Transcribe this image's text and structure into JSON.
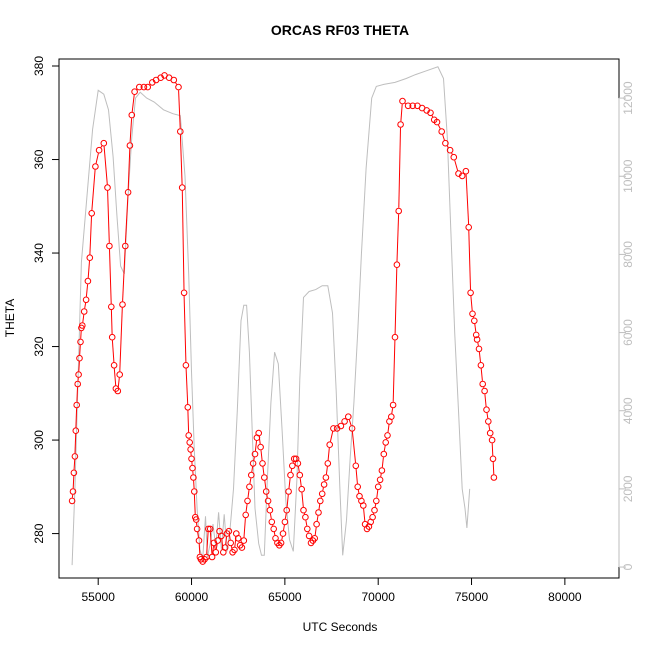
{
  "chart_data": {
    "type": "line",
    "title": "ORCAS RF03 THETA",
    "xlabel": "UTC Seconds",
    "ylabel": "THETA",
    "xlim": [
      52900,
      82900
    ],
    "ylim": [
      270.5,
      381.5
    ],
    "y2lim": [
      -280,
      13000
    ],
    "grid": false,
    "legend": "none",
    "x_ticks": [
      55000,
      60000,
      65000,
      70000,
      75000,
      80000
    ],
    "y_ticks": [
      280,
      300,
      320,
      340,
      360,
      380
    ],
    "y2_ticks": [
      0,
      2000,
      4000,
      6000,
      8000,
      10000,
      12000
    ],
    "colors": {
      "theta": "#ff0000",
      "secondary": "#bebebe"
    },
    "series": [
      {
        "axis": "left",
        "style": "line-with-circles",
        "color": "#ff0000",
        "points": [
          [
            53600,
            287
          ],
          [
            53650,
            289
          ],
          [
            53700,
            293
          ],
          [
            53750,
            296.5
          ],
          [
            53800,
            302
          ],
          [
            53850,
            307.5
          ],
          [
            53900,
            312
          ],
          [
            53950,
            314
          ],
          [
            54000,
            317.5
          ],
          [
            54050,
            321
          ],
          [
            54100,
            324
          ],
          [
            54150,
            324.5
          ],
          [
            54250,
            327.5
          ],
          [
            54350,
            330
          ],
          [
            54450,
            334
          ],
          [
            54550,
            339
          ],
          [
            54650,
            348.5
          ],
          [
            54850,
            358.5
          ],
          [
            55050,
            362
          ],
          [
            55300,
            363.5
          ],
          [
            55500,
            354
          ],
          [
            55600,
            341.5
          ],
          [
            55700,
            328.5
          ],
          [
            55750,
            322
          ],
          [
            55850,
            316
          ],
          [
            55950,
            311
          ],
          [
            56050,
            310.5
          ],
          [
            56150,
            314
          ],
          [
            56300,
            329
          ],
          [
            56450,
            341.5
          ],
          [
            56600,
            353
          ],
          [
            56700,
            363
          ],
          [
            56800,
            369.5
          ],
          [
            56950,
            374.5
          ],
          [
            57200,
            375.5
          ],
          [
            57450,
            375.5
          ],
          [
            57650,
            375.5
          ],
          [
            57900,
            376.5
          ],
          [
            58100,
            377
          ],
          [
            58350,
            377.5
          ],
          [
            58550,
            378
          ],
          [
            58800,
            377.5
          ],
          [
            59050,
            377
          ],
          [
            59300,
            375.5
          ],
          [
            59400,
            366
          ],
          [
            59500,
            354
          ],
          [
            59600,
            331.5
          ],
          [
            59700,
            316
          ],
          [
            59800,
            307
          ],
          [
            59850,
            301
          ],
          [
            59900,
            299.5
          ],
          [
            59950,
            298
          ],
          [
            60000,
            296
          ],
          [
            60050,
            294
          ],
          [
            60100,
            292
          ],
          [
            60150,
            289
          ],
          [
            60200,
            283.5
          ],
          [
            60250,
            283
          ],
          [
            60300,
            281
          ],
          [
            60400,
            278.5
          ],
          [
            60450,
            275
          ],
          [
            60500,
            274.5
          ],
          [
            60600,
            274
          ],
          [
            60700,
            274.5
          ],
          [
            60800,
            275
          ],
          [
            60900,
            281
          ],
          [
            61000,
            281
          ],
          [
            61100,
            275
          ],
          [
            61200,
            278
          ],
          [
            61300,
            276
          ],
          [
            61400,
            278.5
          ],
          [
            61500,
            280.5
          ],
          [
            61600,
            279.5
          ],
          [
            61700,
            276
          ],
          [
            61800,
            277
          ],
          [
            61900,
            280
          ],
          [
            62000,
            280.5
          ],
          [
            62100,
            278
          ],
          [
            62200,
            276
          ],
          [
            62300,
            276.5
          ],
          [
            62400,
            280
          ],
          [
            62500,
            279
          ],
          [
            62600,
            277.5
          ],
          [
            62700,
            277
          ],
          [
            62800,
            278.5
          ],
          [
            62900,
            284
          ],
          [
            63000,
            287
          ],
          [
            63100,
            290
          ],
          [
            63200,
            292.5
          ],
          [
            63300,
            295
          ],
          [
            63400,
            297
          ],
          [
            63500,
            300.5
          ],
          [
            63600,
            301.5
          ],
          [
            63700,
            298.5
          ],
          [
            63800,
            295
          ],
          [
            63900,
            292
          ],
          [
            64000,
            289
          ],
          [
            64100,
            287
          ],
          [
            64200,
            285
          ],
          [
            64300,
            282.5
          ],
          [
            64400,
            281
          ],
          [
            64500,
            279
          ],
          [
            64600,
            278
          ],
          [
            64700,
            277.5
          ],
          [
            64800,
            278
          ],
          [
            64900,
            280
          ],
          [
            65000,
            282.5
          ],
          [
            65100,
            285
          ],
          [
            65200,
            289
          ],
          [
            65300,
            292.5
          ],
          [
            65400,
            294.5
          ],
          [
            65500,
            296
          ],
          [
            65600,
            296
          ],
          [
            65700,
            295
          ],
          [
            65800,
            292.5
          ],
          [
            65900,
            289.5
          ],
          [
            66000,
            285
          ],
          [
            66100,
            283.5
          ],
          [
            66200,
            281
          ],
          [
            66300,
            279.5
          ],
          [
            66400,
            278
          ],
          [
            66500,
            278.5
          ],
          [
            66600,
            279
          ],
          [
            66700,
            282
          ],
          [
            66800,
            284.5
          ],
          [
            66900,
            287
          ],
          [
            67000,
            288.5
          ],
          [
            67100,
            290.5
          ],
          [
            67200,
            292
          ],
          [
            67300,
            295
          ],
          [
            67400,
            299
          ],
          [
            67600,
            302.5
          ],
          [
            67800,
            302.5
          ],
          [
            68000,
            303
          ],
          [
            68200,
            304
          ],
          [
            68400,
            305
          ],
          [
            68600,
            302.5
          ],
          [
            68800,
            294.5
          ],
          [
            68900,
            290
          ],
          [
            69000,
            288
          ],
          [
            69100,
            287
          ],
          [
            69200,
            286
          ],
          [
            69300,
            282
          ],
          [
            69400,
            281
          ],
          [
            69500,
            281.5
          ],
          [
            69600,
            282.5
          ],
          [
            69700,
            283.5
          ],
          [
            69800,
            285
          ],
          [
            69900,
            287
          ],
          [
            70000,
            290
          ],
          [
            70100,
            291.5
          ],
          [
            70200,
            293.5
          ],
          [
            70300,
            297
          ],
          [
            70400,
            299.5
          ],
          [
            70500,
            301
          ],
          [
            70600,
            304
          ],
          [
            70700,
            305
          ],
          [
            70800,
            307.5
          ],
          [
            70900,
            322
          ],
          [
            71000,
            337.5
          ],
          [
            71100,
            349
          ],
          [
            71200,
            367.5
          ],
          [
            71300,
            372.5
          ],
          [
            71600,
            371.5
          ],
          [
            71850,
            371.5
          ],
          [
            72100,
            371.5
          ],
          [
            72350,
            371
          ],
          [
            72600,
            370.5
          ],
          [
            72800,
            370
          ],
          [
            73000,
            368.5
          ],
          [
            73150,
            368
          ],
          [
            73400,
            366
          ],
          [
            73600,
            363.5
          ],
          [
            73850,
            362
          ],
          [
            74050,
            360.5
          ],
          [
            74300,
            357
          ],
          [
            74500,
            356.5
          ],
          [
            74700,
            357.5
          ],
          [
            74850,
            345.5
          ],
          [
            74950,
            331.5
          ],
          [
            75050,
            327
          ],
          [
            75150,
            325.5
          ],
          [
            75250,
            322.5
          ],
          [
            75300,
            321.5
          ],
          [
            75400,
            319.5
          ],
          [
            75500,
            316
          ],
          [
            75600,
            312
          ],
          [
            75700,
            310.5
          ],
          [
            75800,
            306.5
          ],
          [
            75900,
            304
          ],
          [
            76000,
            301.5
          ],
          [
            76100,
            300
          ],
          [
            76150,
            296
          ],
          [
            76200,
            292
          ]
        ]
      },
      {
        "axis": "right",
        "style": "line",
        "color": "#bebebe",
        "points": [
          [
            53600,
            50
          ],
          [
            53750,
            2000
          ],
          [
            53900,
            4500
          ],
          [
            54100,
            7800
          ],
          [
            54400,
            9500
          ],
          [
            54700,
            11200
          ],
          [
            55000,
            12200
          ],
          [
            55300,
            12100
          ],
          [
            55550,
            11700
          ],
          [
            55800,
            10500
          ],
          [
            56000,
            9000
          ],
          [
            56200,
            7700
          ],
          [
            56400,
            7500
          ],
          [
            56600,
            9500
          ],
          [
            56800,
            11000
          ],
          [
            57000,
            12000
          ],
          [
            57250,
            12150
          ],
          [
            57600,
            12000
          ],
          [
            58000,
            11900
          ],
          [
            58500,
            11700
          ],
          [
            59000,
            11600
          ],
          [
            59400,
            11550
          ],
          [
            59650,
            10000
          ],
          [
            59850,
            7500
          ],
          [
            60000,
            5000
          ],
          [
            60150,
            3000
          ],
          [
            60300,
            1500
          ],
          [
            60450,
            450
          ],
          [
            60600,
            200
          ],
          [
            60750,
            1300
          ],
          [
            60850,
            250
          ],
          [
            61000,
            600
          ],
          [
            61150,
            1100
          ],
          [
            61300,
            500
          ],
          [
            61450,
            1400
          ],
          [
            61600,
            450
          ],
          [
            61750,
            1350
          ],
          [
            61900,
            400
          ],
          [
            62050,
            900
          ],
          [
            62250,
            2000
          ],
          [
            62450,
            4000
          ],
          [
            62650,
            6300
          ],
          [
            62800,
            6700
          ],
          [
            62950,
            6700
          ],
          [
            63100,
            5500
          ],
          [
            63250,
            3500
          ],
          [
            63400,
            1500
          ],
          [
            63600,
            600
          ],
          [
            63750,
            300
          ],
          [
            63900,
            300
          ],
          [
            64050,
            2100
          ],
          [
            64250,
            4200
          ],
          [
            64450,
            5500
          ],
          [
            64650,
            5200
          ],
          [
            64850,
            3500
          ],
          [
            65050,
            1700
          ],
          [
            65250,
            700
          ],
          [
            65450,
            400
          ],
          [
            65650,
            2300
          ],
          [
            65800,
            4800
          ],
          [
            66000,
            6900
          ],
          [
            66300,
            7050
          ],
          [
            66650,
            7100
          ],
          [
            67000,
            7200
          ],
          [
            67300,
            7200
          ],
          [
            67550,
            6500
          ],
          [
            67750,
            4500
          ],
          [
            67950,
            2000
          ],
          [
            68100,
            300
          ],
          [
            68300,
            1200
          ],
          [
            68500,
            2800
          ],
          [
            68700,
            4200
          ],
          [
            68900,
            6000
          ],
          [
            69100,
            8000
          ],
          [
            69350,
            10200
          ],
          [
            69650,
            12000
          ],
          [
            69900,
            12300
          ],
          [
            70300,
            12350
          ],
          [
            70900,
            12400
          ],
          [
            71500,
            12500
          ],
          [
            72000,
            12600
          ],
          [
            72600,
            12700
          ],
          [
            73200,
            12800
          ],
          [
            73500,
            12500
          ],
          [
            73700,
            11000
          ],
          [
            73900,
            8500
          ],
          [
            74100,
            6000
          ],
          [
            74300,
            4000
          ],
          [
            74500,
            2000
          ],
          [
            74650,
            1500
          ],
          [
            74750,
            1000
          ],
          [
            74900,
            2000
          ]
        ]
      }
    ]
  }
}
